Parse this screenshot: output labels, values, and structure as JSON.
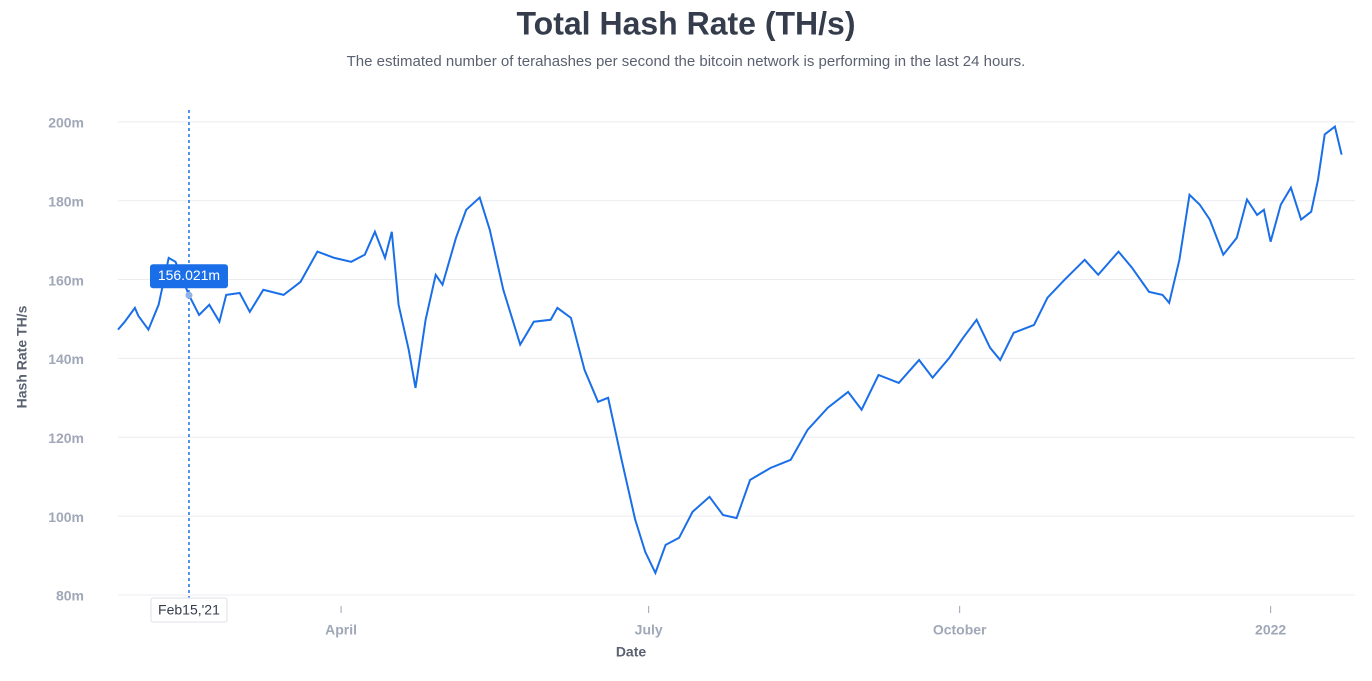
{
  "chart_data": {
    "type": "line",
    "title": "Total Hash Rate (TH/s)",
    "subtitle": "The estimated number of terahashes per second the bitcoin network is performing in the last 24 hours.",
    "x_label": "Date",
    "y_label": "Hash Rate TH/s",
    "xlim": [
      "2021-01-25",
      "2022-01-23"
    ],
    "xticks": [
      {
        "value": "2021-04-01",
        "label": "April"
      },
      {
        "value": "2021-07-01",
        "label": "July"
      },
      {
        "value": "2021-10-01",
        "label": "October"
      },
      {
        "value": "2022-01-01",
        "label": "2022"
      }
    ],
    "ylim": [
      80,
      203
    ],
    "yticks": [
      {
        "value": 80,
        "label": "80m"
      },
      {
        "value": 100,
        "label": "100m"
      },
      {
        "value": 120,
        "label": "120m"
      },
      {
        "value": 140,
        "label": "140m"
      },
      {
        "value": 160,
        "label": "160m"
      },
      {
        "value": 180,
        "label": "180m"
      },
      {
        "value": 200,
        "label": "200m"
      }
    ],
    "grid": true,
    "x": [
      "2021-01-25",
      "2021-01-27",
      "2021-01-30",
      "2021-01-31",
      "2021-02-03",
      "2021-02-06",
      "2021-02-09",
      "2021-02-11",
      "2021-02-14",
      "2021-02-15",
      "2021-02-18",
      "2021-02-21",
      "2021-02-24",
      "2021-02-26",
      "2021-03-02",
      "2021-03-05",
      "2021-03-09",
      "2021-03-15",
      "2021-03-20",
      "2021-03-25",
      "2021-03-30",
      "2021-04-04",
      "2021-04-08",
      "2021-04-11",
      "2021-04-14",
      "2021-04-16",
      "2021-04-18",
      "2021-04-21",
      "2021-04-23",
      "2021-04-26",
      "2021-04-29",
      "2021-05-01",
      "2021-05-05",
      "2021-05-08",
      "2021-05-12",
      "2021-05-15",
      "2021-05-19",
      "2021-05-24",
      "2021-05-28",
      "2021-06-02",
      "2021-06-04",
      "2021-06-08",
      "2021-06-12",
      "2021-06-16",
      "2021-06-19",
      "2021-06-23",
      "2021-06-27",
      "2021-06-30",
      "2021-07-03",
      "2021-07-06",
      "2021-07-10",
      "2021-07-14",
      "2021-07-19",
      "2021-07-23",
      "2021-07-27",
      "2021-07-31",
      "2021-08-06",
      "2021-08-12",
      "2021-08-17",
      "2021-08-23",
      "2021-08-29",
      "2021-09-02",
      "2021-09-07",
      "2021-09-13",
      "2021-09-19",
      "2021-09-23",
      "2021-09-28",
      "2021-10-02",
      "2021-10-06",
      "2021-10-10",
      "2021-10-13",
      "2021-10-17",
      "2021-10-23",
      "2021-10-27",
      "2021-11-01",
      "2021-11-07",
      "2021-11-11",
      "2021-11-17",
      "2021-11-21",
      "2021-11-26",
      "2021-11-30",
      "2021-12-02",
      "2021-12-05",
      "2021-12-08",
      "2021-12-11",
      "2021-12-14",
      "2021-12-18",
      "2021-12-22",
      "2021-12-25",
      "2021-12-28",
      "2021-12-30",
      "2022-01-01",
      "2022-01-04",
      "2022-01-07",
      "2022-01-10",
      "2022-01-13",
      "2022-01-15",
      "2022-01-17",
      "2022-01-20",
      "2022-01-22"
    ],
    "series": [
      {
        "name": "Hash Rate TH/s",
        "color": "#1a6fe8",
        "values": [
          147.3,
          149.3,
          152.8,
          150.8,
          147.3,
          153.6,
          165.5,
          164.5,
          158.2,
          156.021,
          151,
          153.6,
          149.3,
          156.1,
          156.6,
          151.8,
          157.4,
          156.1,
          159.4,
          167.1,
          165.5,
          164.5,
          166.3,
          172.1,
          165.5,
          172.1,
          153.6,
          142.2,
          132.5,
          149.8,
          161.2,
          158.7,
          170.6,
          177.7,
          180.8,
          172.6,
          157.4,
          143.5,
          149.3,
          149.8,
          152.8,
          150.3,
          137.1,
          129,
          130,
          114.3,
          99.1,
          90.9,
          85.6,
          92.7,
          94.5,
          101.1,
          104.9,
          100.3,
          99.5,
          109.2,
          112.2,
          114.3,
          121.9,
          127.5,
          131.5,
          127,
          135.8,
          133.8,
          139.6,
          135.1,
          140.2,
          145.2,
          149.8,
          142.7,
          139.6,
          146.5,
          148.5,
          155.4,
          159.9,
          165,
          161.2,
          167.1,
          163,
          156.9,
          156.1,
          154.1,
          165,
          181.5,
          179,
          175.2,
          166.3,
          170.6,
          180.3,
          176.4,
          177.7,
          169.6,
          179,
          183.3,
          175.2,
          177.2,
          185.3,
          196.8,
          198.8,
          191.7
        ]
      }
    ],
    "tooltip": {
      "x": "2021-02-15",
      "x_label": "Feb15,'21",
      "value": 156.021,
      "label": "156.021m"
    }
  }
}
